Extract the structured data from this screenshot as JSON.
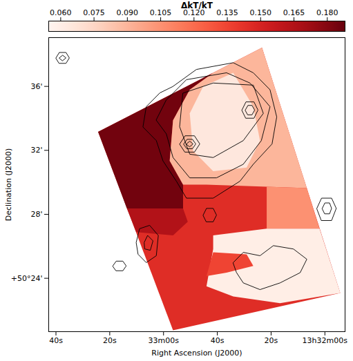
{
  "chart_data": {
    "type": "heatmap",
    "xlabel": "Right Ascension (J2000)",
    "ylabel": "Declination (J2000)",
    "xlim": [
      222.7,
      112.5
    ],
    "xticks": [
      {
        "value": 220,
        "label": "40s"
      },
      {
        "value": 200,
        "label": "20s"
      },
      {
        "value": 180,
        "label": "33m00s"
      },
      {
        "value": 160,
        "label": "40s"
      },
      {
        "value": 140,
        "label": "20s"
      },
      {
        "value": 120,
        "label": "13h32m00s"
      }
    ],
    "ylim": [
      20.66,
      39.05
    ],
    "yticks": [
      {
        "value": 36,
        "label": "36'"
      },
      {
        "value": 32,
        "label": "32'"
      },
      {
        "value": 28,
        "label": "28'"
      },
      {
        "value": 24,
        "label": "+50°24'"
      }
    ],
    "grid": false,
    "color": "reds",
    "colorbar": {
      "label": "ΔkT/kT",
      "range": [
        0.0546,
        0.188
      ],
      "ticks": [
        {
          "value": 0.06,
          "label": "0.060"
        },
        {
          "value": 0.075,
          "label": "0.075"
        },
        {
          "value": 0.09,
          "label": "0.090"
        },
        {
          "value": 0.105,
          "label": "0.105"
        },
        {
          "value": 0.12,
          "label": "0.120"
        },
        {
          "value": 0.135,
          "label": "0.135"
        },
        {
          "value": 0.15,
          "label": "0.150"
        },
        {
          "value": 0.165,
          "label": "0.165"
        },
        {
          "value": 0.18,
          "label": "0.180"
        }
      ]
    },
    "regions": [
      {
        "value": 0.145,
        "points": [
          [
            204.33,
            33.16
          ],
          [
            143.38,
            38.42
          ],
          [
            114.28,
            23.08
          ],
          [
            176.47,
            20.75
          ]
        ]
      },
      {
        "value": 0.185,
        "points": [
          [
            204.33,
            33.16
          ],
          [
            161.54,
            36.85
          ],
          [
            170.25,
            35.79
          ],
          [
            176.47,
            33.88
          ],
          [
            177.71,
            31.34
          ],
          [
            172.74,
            29.86
          ],
          [
            172.74,
            28.37
          ],
          [
            193.63,
            28.37
          ]
        ]
      },
      {
        "value": 0.165,
        "points": [
          [
            193.63,
            28.37
          ],
          [
            172.74,
            28.37
          ],
          [
            170.99,
            27.53
          ],
          [
            176.47,
            26.68
          ],
          [
            190.15,
            26.89
          ]
        ]
      },
      {
        "value": 0.09,
        "points": [
          [
            161.54,
            36.85
          ],
          [
            143.38,
            38.42
          ],
          [
            126.72,
            29.64
          ],
          [
            141.64,
            29.73
          ],
          [
            164.03,
            29.86
          ],
          [
            172.74,
            29.86
          ],
          [
            177.71,
            31.34
          ],
          [
            176.47,
            33.88
          ],
          [
            170.25,
            35.79
          ]
        ]
      },
      {
        "value": 0.065,
        "points": [
          [
            165.27,
            36.0
          ],
          [
            154.08,
            36.85
          ],
          [
            146.62,
            34.73
          ],
          [
            144.13,
            32.61
          ],
          [
            149.1,
            30.92
          ],
          [
            161.54,
            30.7
          ],
          [
            169.0,
            31.97
          ],
          [
            170.25,
            34.31
          ]
        ]
      },
      {
        "value": 0.105,
        "points": [
          [
            141.64,
            29.73
          ],
          [
            126.72,
            29.64
          ],
          [
            121.99,
            27.1
          ],
          [
            141.64,
            27.1
          ]
        ]
      },
      {
        "value": 0.06,
        "points": [
          [
            161.54,
            26.68
          ],
          [
            141.64,
            27.1
          ],
          [
            121.99,
            27.1
          ],
          [
            114.28,
            23.08
          ],
          [
            136.67,
            22.44
          ],
          [
            154.08,
            22.86
          ],
          [
            164.03,
            23.5
          ],
          [
            161.54,
            25.83
          ]
        ]
      },
      {
        "value": 0.135,
        "points": [
          [
            161.54,
            25.62
          ],
          [
            149.1,
            25.49
          ],
          [
            146.62,
            24.77
          ],
          [
            156.57,
            24.35
          ],
          [
            164.03,
            24.14
          ]
        ]
      }
    ],
    "contours": [
      [
        [
          176.47,
          36.0
        ],
        [
          167.76,
          37.06
        ],
        [
          154.08,
          37.48
        ],
        [
          146.62,
          36.85
        ],
        [
          140.4,
          35.79
        ],
        [
          137.91,
          34.09
        ],
        [
          139.65,
          32.4
        ],
        [
          146.62,
          31.13
        ],
        [
          151.59,
          30.07
        ],
        [
          161.54,
          29.01
        ],
        [
          171.49,
          29.01
        ],
        [
          175.22,
          30.07
        ],
        [
          180.2,
          31.34
        ],
        [
          182.69,
          32.61
        ],
        [
          187.66,
          33.46
        ],
        [
          186.42,
          34.73
        ],
        [
          181.44,
          35.58
        ]
      ],
      [
        [
          178.96,
          35.15
        ],
        [
          171.49,
          36.42
        ],
        [
          156.57,
          36.85
        ],
        [
          147.86,
          36.21
        ],
        [
          140.4,
          34.73
        ],
        [
          143.63,
          32.61
        ],
        [
          150.35,
          31.13
        ],
        [
          160.3,
          30.28
        ],
        [
          170.25,
          30.28
        ],
        [
          176.47,
          31.55
        ],
        [
          178.96,
          33.03
        ],
        [
          182.69,
          33.88
        ]
      ],
      [
        [
          172.74,
          35.58
        ],
        [
          161.54,
          36.21
        ],
        [
          146.62,
          36.08
        ],
        [
          142.89,
          34.31
        ],
        [
          150.35,
          32.61
        ],
        [
          161.54,
          31.55
        ],
        [
          170.25,
          31.76
        ],
        [
          173.98,
          33.46
        ]
      ],
      [
        [
          173.98,
          32.4
        ],
        [
          171.99,
          32.91
        ],
        [
          168.51,
          32.91
        ],
        [
          166.52,
          32.4
        ],
        [
          168.51,
          31.89
        ],
        [
          171.99,
          31.89
        ]
      ],
      [
        [
          172.49,
          32.4
        ],
        [
          171.24,
          32.69
        ],
        [
          169.25,
          32.69
        ],
        [
          168.01,
          32.4
        ],
        [
          169.25,
          32.1
        ],
        [
          171.24,
          32.1
        ]
      ],
      [
        [
          171.49,
          32.4
        ],
        [
          170.25,
          32.57
        ],
        [
          169.0,
          32.4
        ],
        [
          170.25,
          32.23
        ]
      ],
      [
        [
          150.85,
          34.52
        ],
        [
          149.35,
          35.03
        ],
        [
          146.37,
          35.03
        ],
        [
          144.88,
          34.52
        ],
        [
          146.37,
          34.01
        ],
        [
          149.35,
          34.01
        ]
      ],
      [
        [
          149.6,
          34.52
        ],
        [
          148.61,
          34.81
        ],
        [
          147.11,
          34.81
        ],
        [
          146.12,
          34.52
        ],
        [
          147.11,
          34.22
        ],
        [
          148.61,
          34.22
        ]
      ],
      [
        [
          154.08,
          24.98
        ],
        [
          150.35,
          25.62
        ],
        [
          144.13,
          25.41
        ],
        [
          139.15,
          26.04
        ],
        [
          131.69,
          25.83
        ],
        [
          126.72,
          25.19
        ],
        [
          129.2,
          24.35
        ],
        [
          136.67,
          23.71
        ],
        [
          144.13,
          23.29
        ],
        [
          150.35,
          23.71
        ],
        [
          152.84,
          24.35
        ]
      ],
      [
        [
          190.15,
          26.25
        ],
        [
          188.91,
          27.1
        ],
        [
          185.17,
          27.31
        ],
        [
          181.94,
          26.68
        ],
        [
          182.69,
          25.41
        ],
        [
          186.42,
          24.98
        ],
        [
          189.4,
          25.49
        ]
      ],
      [
        [
          187.16,
          26.25
        ],
        [
          185.92,
          26.68
        ],
        [
          183.93,
          26.34
        ],
        [
          184.92,
          25.75
        ],
        [
          186.91,
          25.83
        ]
      ],
      [
        [
          165.27,
          27.95
        ],
        [
          164.03,
          28.37
        ],
        [
          161.54,
          28.37
        ],
        [
          160.3,
          27.95
        ],
        [
          161.54,
          27.53
        ],
        [
          164.03,
          27.53
        ]
      ],
      [
        [
          122.99,
          28.37
        ],
        [
          121.24,
          29.01
        ],
        [
          117.51,
          29.01
        ],
        [
          115.77,
          28.37
        ],
        [
          117.51,
          27.61
        ],
        [
          121.24,
          27.61
        ]
      ],
      [
        [
          120.99,
          28.37
        ],
        [
          120.0,
          28.71
        ],
        [
          118.26,
          28.71
        ],
        [
          117.51,
          28.37
        ],
        [
          118.26,
          28.03
        ],
        [
          120.0,
          28.03
        ]
      ],
      [
        [
          220.0,
          37.78
        ],
        [
          218.76,
          38.12
        ],
        [
          216.27,
          38.12
        ],
        [
          215.02,
          37.78
        ],
        [
          216.27,
          37.44
        ],
        [
          218.76,
          37.44
        ]
      ],
      [
        [
          218.76,
          37.78
        ],
        [
          217.51,
          37.95
        ],
        [
          216.27,
          37.78
        ],
        [
          217.51,
          37.61
        ]
      ],
      [
        [
          198.86,
          24.77
        ],
        [
          197.61,
          25.07
        ],
        [
          195.12,
          25.07
        ],
        [
          193.88,
          24.77
        ],
        [
          195.12,
          24.47
        ],
        [
          197.61,
          24.47
        ]
      ]
    ]
  }
}
